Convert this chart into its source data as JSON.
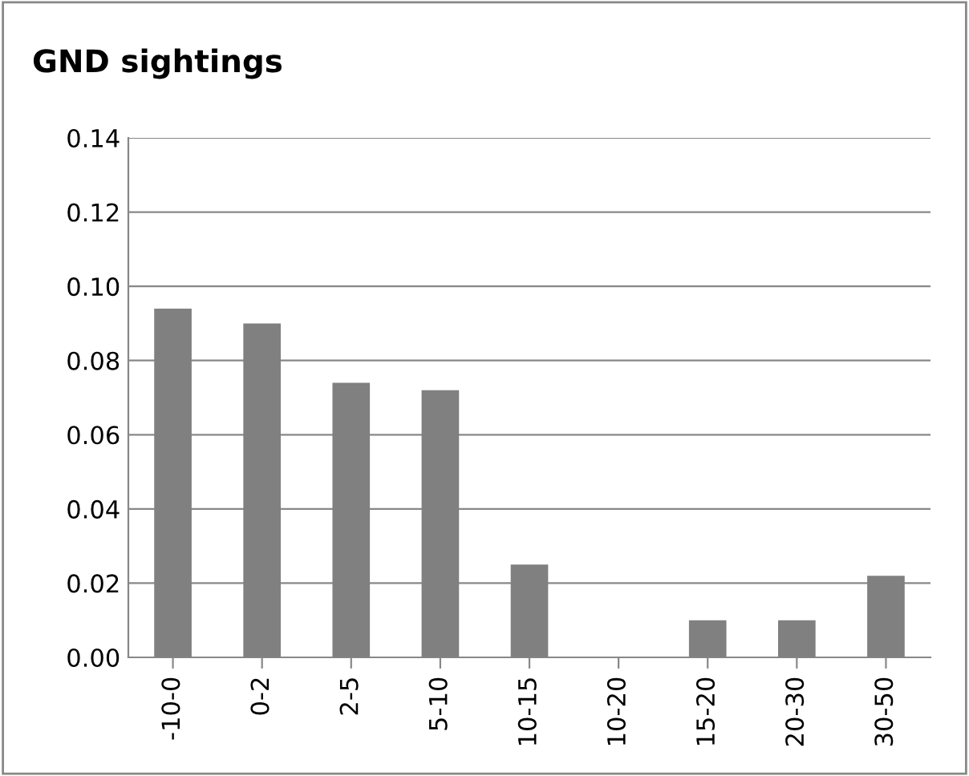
{
  "chart_data": {
    "type": "bar",
    "title": "GND sightings",
    "categories": [
      "-10-0",
      "0-2",
      "2-5",
      "5-10",
      "10-15",
      "10-20",
      "15-20",
      "20-30",
      "30-50"
    ],
    "values": [
      0.094,
      0.09,
      0.074,
      0.072,
      0.025,
      0,
      0.01,
      0.01,
      0.022
    ],
    "color": "#808080",
    "ylim": [
      0,
      0.14
    ],
    "yticks": [
      {
        "value": 0,
        "label": "0.00"
      },
      {
        "value": 0.02,
        "label": "0.02"
      },
      {
        "value": 0.04,
        "label": "0.04"
      },
      {
        "value": 0.06,
        "label": "0.06"
      },
      {
        "value": 0.08,
        "label": "0.08"
      },
      {
        "value": 0.1,
        "label": "0.10"
      },
      {
        "value": 0.12,
        "label": "0.12"
      },
      {
        "value": 0.14,
        "label": "0.14"
      }
    ],
    "grid": "y"
  }
}
